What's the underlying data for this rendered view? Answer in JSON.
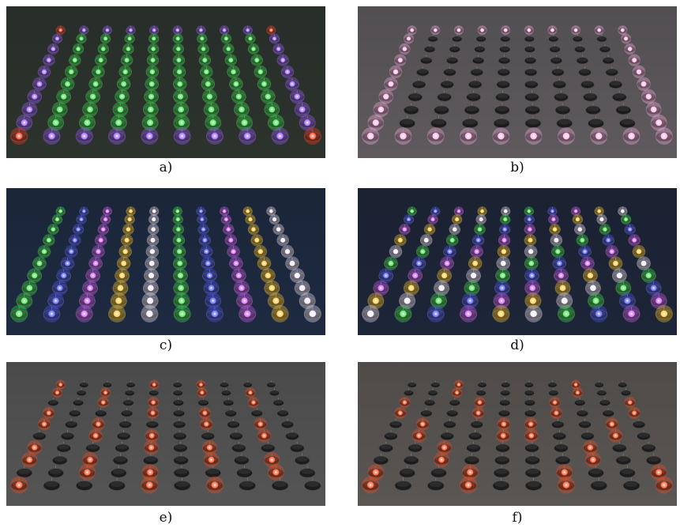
{
  "figure": {
    "panels": [
      {
        "id": "a",
        "caption": "a)",
        "scene": "robot-grid-led-pattern",
        "background": "#2c332d",
        "pattern": "green-interior-purple-border-red-corners",
        "colors": {
          "interior": "#39e64a",
          "border": "#9a5cff",
          "corner": "#ff3a1a"
        }
      },
      {
        "id": "b",
        "caption": "b)",
        "scene": "robot-grid-led-pattern",
        "background": "#5e5a5e",
        "pattern": "pink-border-dark-interior",
        "colors": {
          "border": "#ffb3e6",
          "interior": "#2a2a2a"
        }
      },
      {
        "id": "c",
        "caption": "c)",
        "scene": "robot-grid-led-pattern",
        "background": "#1d2a40",
        "pattern": "column-stripes",
        "colors": {
          "stripes": [
            "#3ce64a",
            "#4a55ff",
            "#d05cff",
            "#ffc830",
            "#f0e8ff"
          ]
        }
      },
      {
        "id": "d",
        "caption": "d)",
        "scene": "robot-grid-led-pattern",
        "background": "#1d2538",
        "pattern": "diagonal-stripes",
        "colors": {
          "stripes": [
            "#3ce64a",
            "#4a55ff",
            "#d05cff",
            "#ffc830",
            "#f0e8ff"
          ]
        }
      },
      {
        "id": "e",
        "caption": "e)",
        "scene": "robot-grid-led-pattern",
        "background": "#555555",
        "pattern": "red-columns-sparse",
        "colors": {
          "on": "#ff4a1a",
          "off": "#2a2a2a"
        }
      },
      {
        "id": "f",
        "caption": "f)",
        "scene": "robot-grid-led-pattern",
        "background": "#5a5654",
        "pattern": "red-chevrons",
        "colors": {
          "on": "#ff4a1a",
          "off": "#2a2a2a"
        }
      }
    ]
  }
}
